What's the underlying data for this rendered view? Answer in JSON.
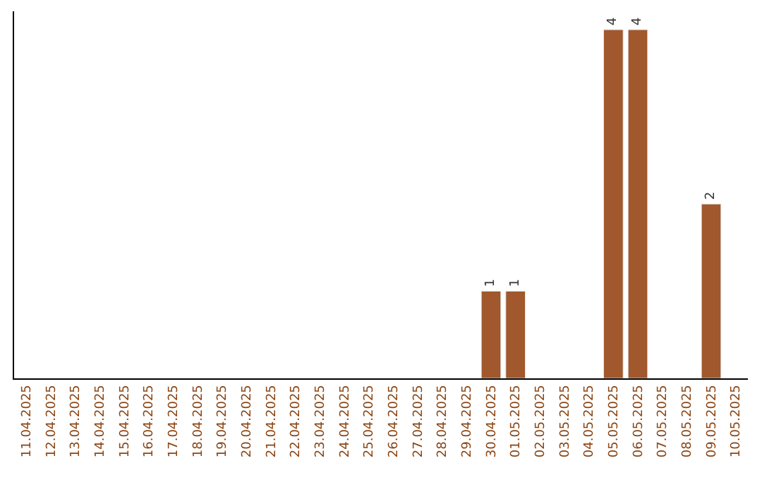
{
  "chart_data": {
    "type": "bar",
    "categories": [
      "11.04.2025",
      "12.04.2025",
      "13.04.2025",
      "14.04.2025",
      "15.04.2025",
      "16.04.2025",
      "17.04.2025",
      "18.04.2025",
      "19.04.2025",
      "20.04.2025",
      "21.04.2025",
      "22.04.2025",
      "23.04.2025",
      "24.04.2025",
      "25.04.2025",
      "26.04.2025",
      "27.04.2025",
      "28.04.2025",
      "29.04.2025",
      "30.04.2025",
      "01.05.2025",
      "02.05.2025",
      "03.05.2025",
      "04.05.2025",
      "05.05.2025",
      "06.05.2025",
      "07.05.2025",
      "08.05.2025",
      "09.05.2025",
      "10.05.2025"
    ],
    "values": [
      null,
      null,
      null,
      null,
      null,
      null,
      null,
      null,
      null,
      null,
      null,
      null,
      null,
      null,
      null,
      null,
      null,
      null,
      null,
      1,
      1,
      null,
      null,
      null,
      4,
      4,
      null,
      null,
      2,
      null
    ],
    "data_labels": true,
    "color": "#a0582c"
  }
}
